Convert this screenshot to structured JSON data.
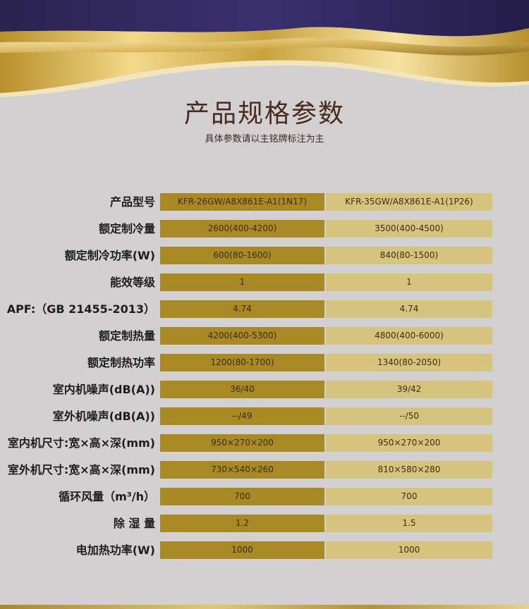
{
  "header": {
    "title": "产品规格参数",
    "subtitle": "具体参数请以主铭牌标注为主"
  },
  "colors": {
    "background": "#d3d0d2",
    "navy": "#26204f",
    "gold_dark": "#a88924",
    "gold_light": "#d6c37e"
  },
  "specs": {
    "rows": [
      {
        "label": "产品型号",
        "v1": "KFR-26GW/A8X861E-A1(1N17)",
        "v2": "KFR-35GW/A8X861E-A1(1P26)"
      },
      {
        "label": "额定制冷量",
        "v1": "2600(400-4200)",
        "v2": "3500(400-4500)"
      },
      {
        "label": "额定制冷功率(W)",
        "v1": "600(80-1600)",
        "v2": "840(80-1500)"
      },
      {
        "label": "能效等级",
        "v1": "1",
        "v2": "1"
      },
      {
        "label": "APF:（GB 21455-2013）",
        "v1": "4.74",
        "v2": "4.74"
      },
      {
        "label": "额定制热量",
        "v1": "4200(400-5300)",
        "v2": "4800(400-6000)"
      },
      {
        "label": "额定制热功率",
        "v1": "1200(80-1700)",
        "v2": "1340(80-2050)"
      },
      {
        "label": "室内机噪声(dB(A))",
        "v1": "36/40",
        "v2": "39/42"
      },
      {
        "label": "室外机噪声(dB(A))",
        "v1": "--/49",
        "v2": "--/50"
      },
      {
        "label": "室内机尺寸:宽×高×深(mm)",
        "v1": "950×270×200",
        "v2": "950×270×200"
      },
      {
        "label": "室外机尺寸:宽×高×深(mm)",
        "v1": "730×540×260",
        "v2": "810×580×280"
      },
      {
        "label": "循环风量（m³/h）",
        "v1": "700",
        "v2": "700"
      },
      {
        "label": "除 湿 量",
        "v1": "1.2",
        "v2": "1.5"
      },
      {
        "label": "电加热功率(W)",
        "v1": "1000",
        "v2": "1000"
      }
    ]
  }
}
